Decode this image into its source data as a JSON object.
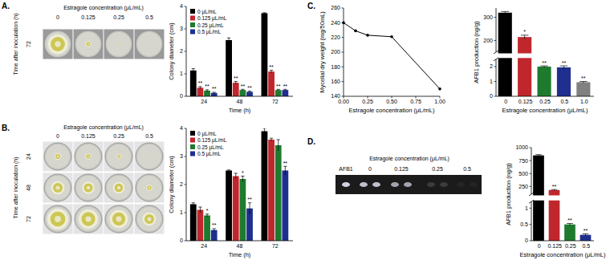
{
  "panel_labels": [
    "A.",
    "B.",
    "C.",
    "D."
  ],
  "images": [
    {
      "type": "image",
      "title": "Estragole concentration (μL/mL)",
      "columns": [
        "0",
        "0.125",
        "0.25",
        "0.5"
      ],
      "row_title": "Time after inoculation (h)",
      "rows": [
        "72"
      ]
    },
    {
      "type": "image",
      "title": "Estragole concentration (μL/mL)",
      "columns": [
        "0",
        "0.125",
        "0.25",
        "0.5"
      ],
      "row_title": "Time after inoculation (h)",
      "rows": [
        "24",
        "48",
        "72"
      ]
    },
    {
      "type": "tlc",
      "title": "Estragole concentration (μL/mL)",
      "standard": "AFB1",
      "lanes": [
        "0",
        "0.125",
        "0.25",
        "0.5"
      ]
    }
  ],
  "chart_data": [
    {
      "type": "bar",
      "x_label": "Time (h)",
      "y_label": "Colony diameter (cm)",
      "categories": [
        "24",
        "48",
        "72"
      ],
      "ylim": [
        0,
        4
      ],
      "yticks": [
        0,
        1,
        2,
        3,
        4
      ],
      "legend": "upper left",
      "series": [
        {
          "name": "0 μL/mL",
          "color": "#000000",
          "values": [
            1.15,
            2.5,
            3.7
          ],
          "errors": [
            0.08,
            0.1,
            0.02
          ]
        },
        {
          "name": "0.125 μL/mL",
          "color": "#c0272d",
          "values": [
            0.38,
            0.6,
            1.1
          ],
          "errors": [
            0.05,
            0.06,
            0.06
          ],
          "significance": [
            "**",
            "**",
            "**"
          ]
        },
        {
          "name": "0.25 μL/mL",
          "color": "#1e7b2e",
          "values": [
            0.25,
            0.28,
            0.28
          ],
          "errors": [
            0.04,
            0.03,
            0.03
          ],
          "significance": [
            "**",
            "**",
            "**"
          ]
        },
        {
          "name": "0.5 μL/mL",
          "color": "#1f2f8f",
          "values": [
            0.15,
            0.2,
            0.28
          ],
          "errors": [
            0.03,
            0.03,
            0.03
          ],
          "significance": [
            "**",
            "**",
            "**"
          ]
        }
      ]
    },
    {
      "type": "bar",
      "x_label": "Time (h)",
      "y_label": "Colony diameter (cm)",
      "categories": [
        "24",
        "48",
        "72"
      ],
      "ylim": [
        0,
        4
      ],
      "yticks": [
        0,
        1,
        2,
        3,
        4
      ],
      "legend": "upper left",
      "series": [
        {
          "name": "0 μL/mL",
          "color": "#000000",
          "values": [
            1.3,
            2.5,
            3.9
          ],
          "errors": [
            0.05,
            0.02,
            0.1
          ]
        },
        {
          "name": "0.125 μL/mL",
          "color": "#c0272d",
          "values": [
            1.1,
            2.3,
            3.6
          ],
          "errors": [
            0.1,
            0.1,
            0.05
          ]
        },
        {
          "name": "0.25 μL/mL",
          "color": "#1e7b2e",
          "values": [
            0.9,
            2.2,
            3.4
          ],
          "errors": [
            0.05,
            0.1,
            0.2
          ],
          "significance": [
            "*",
            "*",
            null
          ]
        },
        {
          "name": "0.5 μL/mL",
          "color": "#1f2f8f",
          "values": [
            0.38,
            1.15,
            2.5
          ],
          "errors": [
            0.05,
            0.2,
            0.15
          ],
          "significance": [
            "**",
            "**",
            "**"
          ]
        }
      ]
    },
    {
      "type": "line",
      "x_label": "Estragole concentration (μL/mL)",
      "y_label": "Mycelial dry weight (mg/50mL)",
      "x": [
        0,
        0.125,
        0.25,
        0.5,
        1.0
      ],
      "values": [
        240,
        229,
        223,
        221,
        150
      ],
      "color": "#000000",
      "marker": "circle",
      "xlim": [
        0,
        1
      ],
      "xticks": [
        {
          "value": 0,
          "label": "0.00"
        },
        {
          "value": 0.25,
          "label": "0.25"
        },
        {
          "value": 0.5,
          "label": "0.50"
        },
        {
          "value": 0.75,
          "label": "0.75"
        },
        {
          "value": 1,
          "label": "1.00"
        }
      ],
      "ylim": [
        140,
        260
      ],
      "yticks": [
        140,
        160,
        180,
        200,
        220,
        240,
        260
      ]
    },
    {
      "type": "bar",
      "x_label": "Estragole concentration (μL/mL)",
      "y_label": "AFB1 production (ng/g)",
      "categories": [
        "0",
        "0.125",
        "0.25",
        "0.5",
        "1.0"
      ],
      "values": [
        320,
        215,
        2.0,
        1.95,
        0.95
      ],
      "errors": [
        5,
        8,
        0.05,
        0.1,
        0.05
      ],
      "colors": [
        "#000000",
        "#c0272d",
        "#1e7b2e",
        "#1f2f8f",
        "#808080"
      ],
      "significance": [
        null,
        "*",
        "**",
        "**",
        "**"
      ],
      "ylim": [
        0,
        340
      ],
      "ylim_break": [
        2.5,
        150
      ],
      "yticks": [
        0,
        1,
        2,
        200,
        300
      ]
    },
    {
      "type": "bar",
      "x_label": "Estragole concentration (μL/mL)",
      "y_label": "AFB1 production (ng/g)",
      "categories": [
        "0",
        "0.125",
        "0.25",
        "0.5"
      ],
      "values": [
        850,
        180,
        0.5,
        0.18
      ],
      "errors": [
        15,
        10,
        0.03,
        0.03
      ],
      "colors": [
        "#000000",
        "#c0272d",
        "#1e7b2e",
        "#1f2f8f"
      ],
      "significance": [
        null,
        "**",
        "**",
        "**"
      ],
      "ylim": [
        0,
        1000
      ],
      "ylim_break": [
        1.2,
        100
      ],
      "yticks": [
        0,
        0.5,
        1,
        250,
        500,
        750,
        1000
      ]
    }
  ]
}
